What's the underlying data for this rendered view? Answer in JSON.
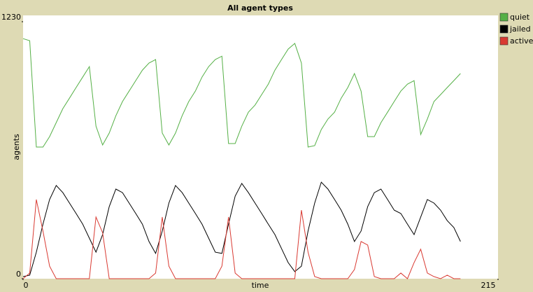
{
  "chart_data": {
    "type": "line",
    "title": "All agent types",
    "x_label": "time",
    "y_label": "agents",
    "xlim": [
      0,
      215
    ],
    "ylim": [
      0,
      1230
    ],
    "xticks": [
      0,
      215
    ],
    "yticks": [
      0,
      1230
    ],
    "grid": false,
    "legend": "right",
    "x": [
      0,
      3,
      6,
      9,
      12,
      15,
      18,
      21,
      24,
      27,
      30,
      33,
      36,
      39,
      42,
      45,
      48,
      51,
      54,
      57,
      60,
      63,
      66,
      69,
      72,
      75,
      78,
      81,
      84,
      87,
      90,
      93,
      96,
      99,
      102,
      105,
      108,
      111,
      114,
      117,
      120,
      123,
      126,
      129,
      132,
      135,
      138,
      141,
      144,
      147,
      150,
      153,
      156,
      159,
      162,
      165,
      168,
      171,
      174,
      177,
      180,
      183,
      186,
      189,
      192,
      195,
      198
    ],
    "series": [
      {
        "name": "quiet",
        "color": "#55b046",
        "values": [
          1149,
          1139,
          630,
          630,
          680,
          747,
          814,
          864,
          915,
          965,
          1015,
          730,
          640,
          697,
          780,
          848,
          898,
          948,
          998,
          1032,
          1049,
          697,
          640,
          697,
          780,
          848,
          898,
          965,
          1015,
          1049,
          1065,
          647,
          647,
          730,
          797,
          831,
          881,
          931,
          998,
          1049,
          1099,
          1126,
          1032,
          630,
          637,
          714,
          764,
          797,
          864,
          915,
          982,
          898,
          680,
          680,
          747,
          797,
          848,
          898,
          931,
          948,
          690,
          764,
          848,
          881,
          915,
          948,
          982
        ]
      },
      {
        "name": "jailed",
        "color": "#000000",
        "values": [
          10,
          17,
          127,
          261,
          379,
          446,
          412,
          362,
          312,
          261,
          194,
          127,
          211,
          345,
          429,
          412,
          362,
          312,
          261,
          178,
          121,
          228,
          362,
          446,
          412,
          362,
          312,
          261,
          194,
          127,
          121,
          261,
          395,
          456,
          412,
          362,
          312,
          261,
          211,
          144,
          77,
          34,
          60,
          228,
          362,
          462,
          429,
          379,
          328,
          261,
          178,
          228,
          345,
          412,
          429,
          379,
          328,
          312,
          261,
          211,
          295,
          379,
          362,
          328,
          278,
          245,
          178
        ]
      },
      {
        "name": "active",
        "color": "#d93a32",
        "values": [
          0,
          27,
          379,
          228,
          60,
          0,
          0,
          0,
          0,
          0,
          0,
          295,
          220,
          0,
          0,
          0,
          0,
          0,
          0,
          0,
          27,
          295,
          60,
          0,
          0,
          0,
          0,
          0,
          0,
          0,
          60,
          295,
          27,
          0,
          0,
          0,
          0,
          0,
          0,
          0,
          0,
          0,
          328,
          127,
          10,
          0,
          0,
          0,
          0,
          0,
          44,
          178,
          161,
          10,
          0,
          0,
          0,
          27,
          0,
          77,
          141,
          27,
          10,
          0,
          17,
          0,
          0
        ]
      }
    ]
  }
}
